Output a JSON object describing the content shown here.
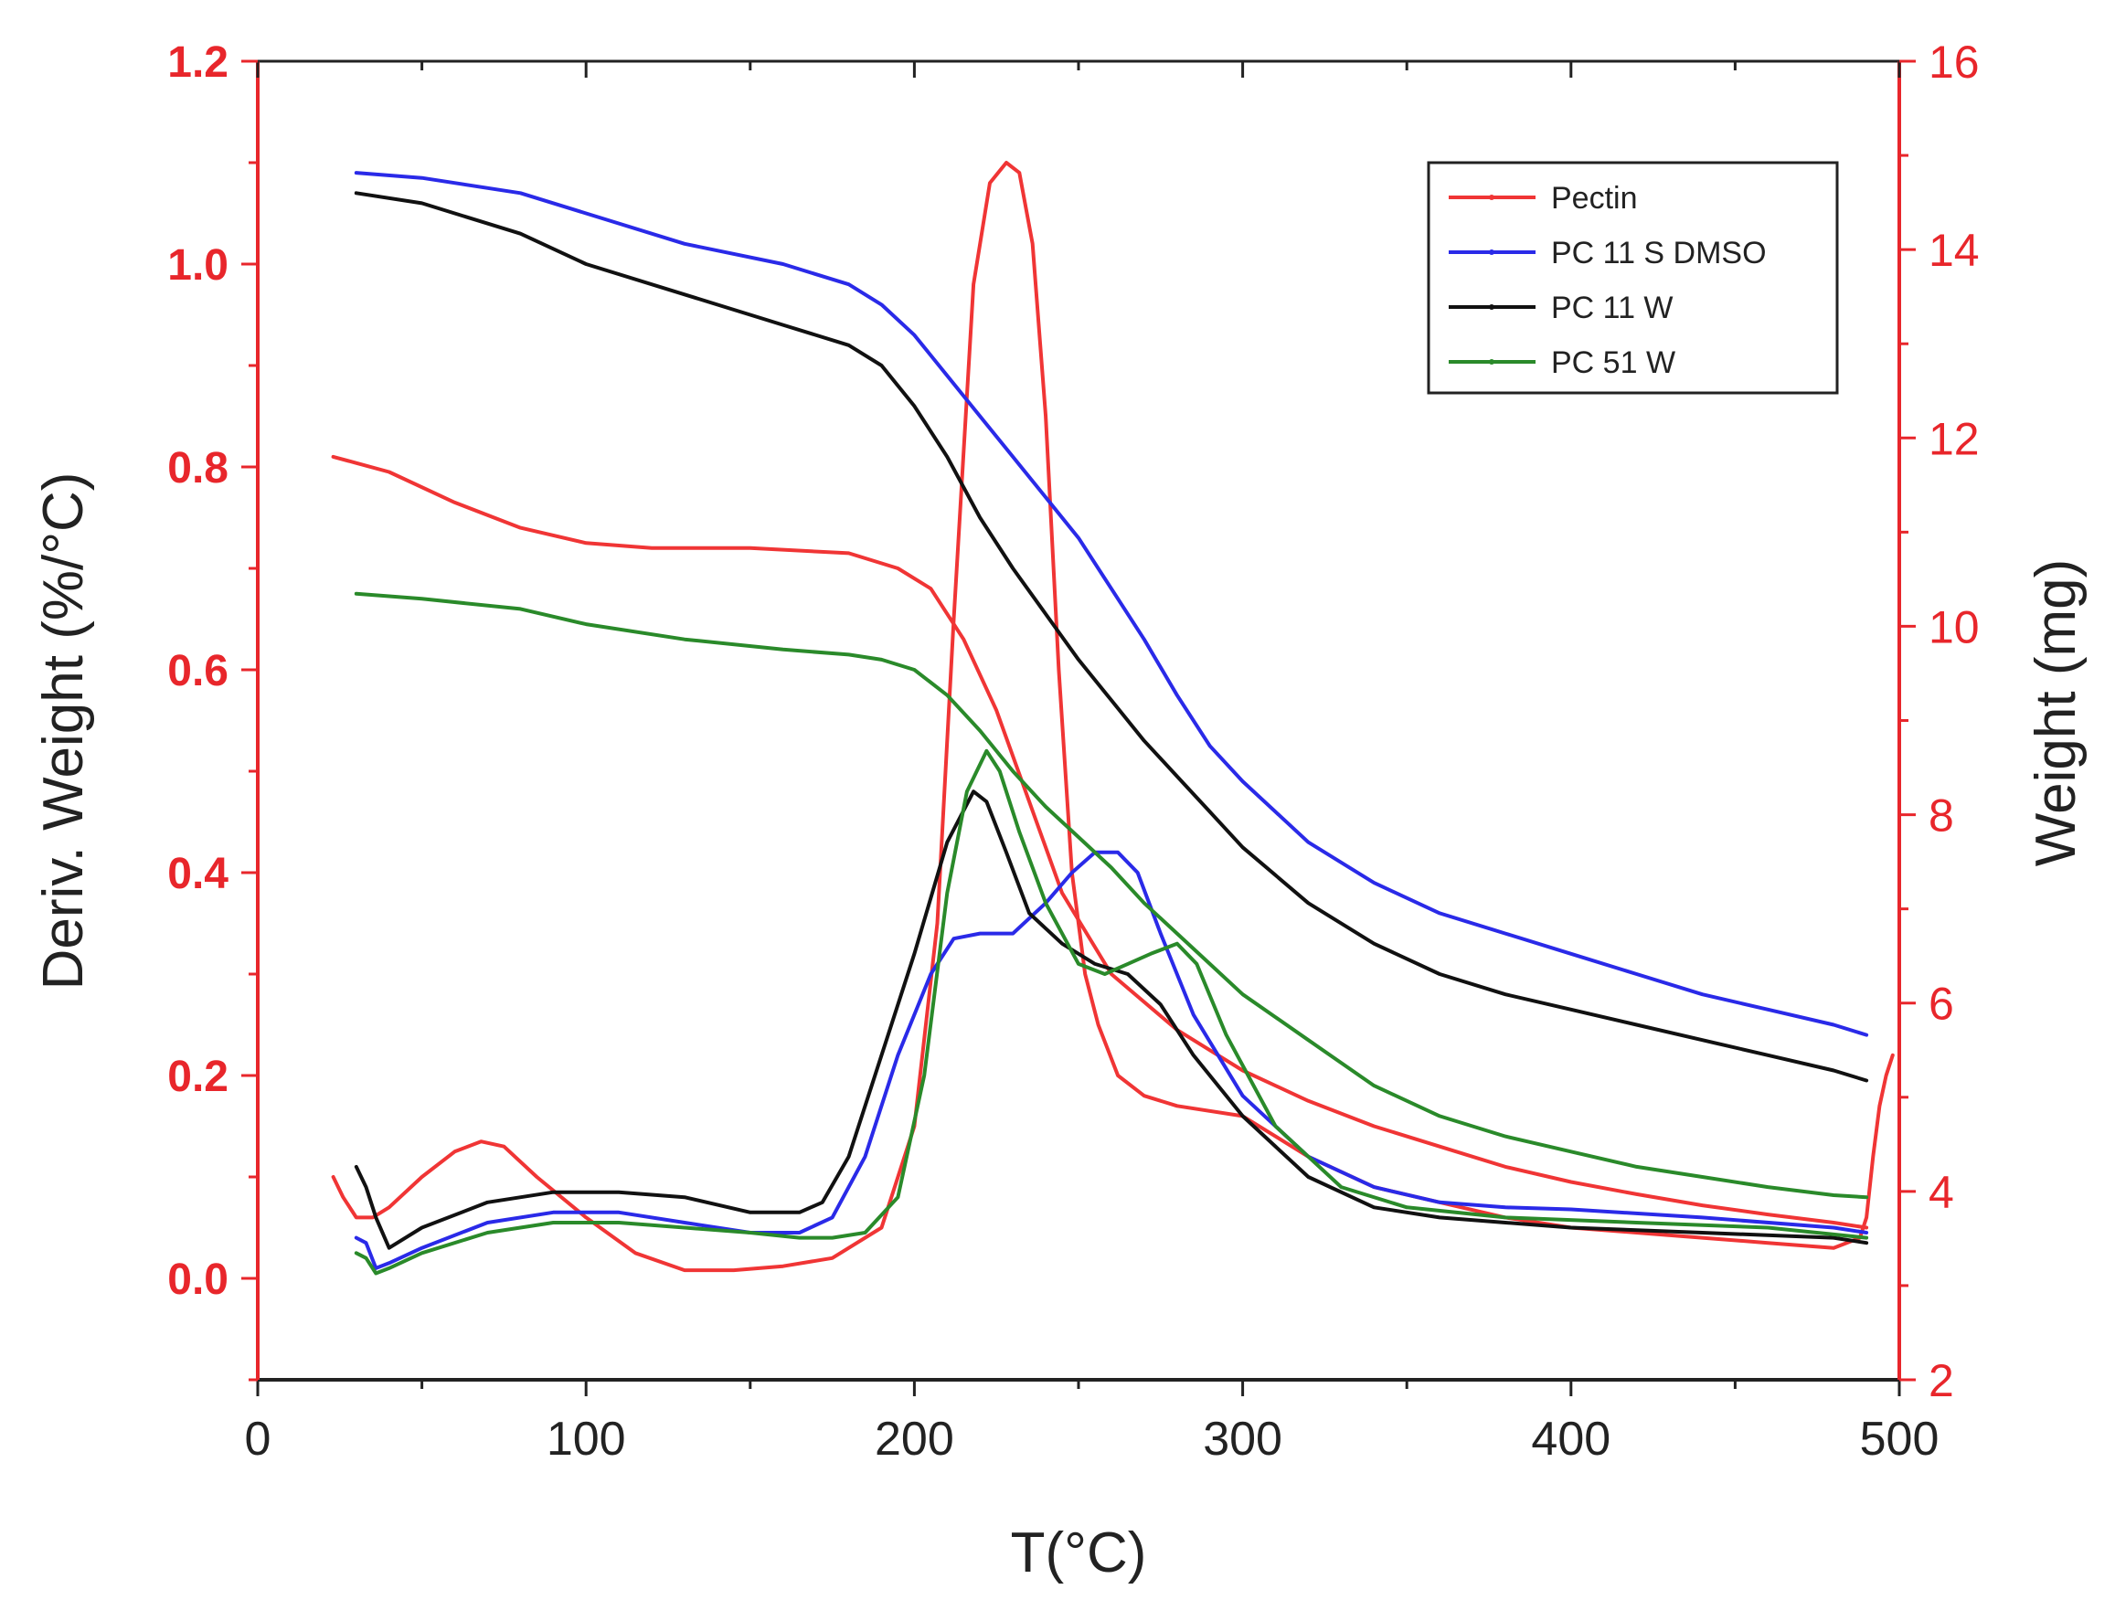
{
  "chart_data": {
    "type": "line",
    "title": "",
    "xlabel": "T(°C)",
    "ylabel_left": "Deriv. Weight (%/°C)",
    "ylabel_right": "Weight (mg)",
    "xlim": [
      0,
      500
    ],
    "ylim_left": [
      -0.1,
      1.2
    ],
    "ylim_right": [
      2,
      16
    ],
    "x_ticks": [
      "0",
      "100",
      "200",
      "300",
      "400",
      "500"
    ],
    "y_left_ticks": [
      "0.0",
      "0.2",
      "0.4",
      "0.6",
      "0.8",
      "1.0",
      "1.2"
    ],
    "y_right_ticks": [
      "2",
      "4",
      "6",
      "8",
      "10",
      "12",
      "14",
      "16"
    ],
    "legend_position": "top-right",
    "legend": [
      {
        "name": "Pectin",
        "color": "#f03535"
      },
      {
        "name": "PC 11 S   DMSO",
        "color": "#2a2ae8"
      },
      {
        "name": "PC 11 W",
        "color": "#111111"
      },
      {
        "name": "PC 51 W",
        "color": "#2a8a2a"
      }
    ],
    "series": [
      {
        "name": "Pectin",
        "kind": "weight",
        "axis": "left",
        "color": "#f03535",
        "x": [
          23,
          40,
          60,
          80,
          100,
          120,
          150,
          180,
          195,
          205,
          215,
          225,
          235,
          245,
          260,
          280,
          300,
          320,
          340,
          360,
          380,
          400,
          420,
          440,
          460,
          480,
          490
        ],
        "y": [
          0.81,
          0.795,
          0.765,
          0.74,
          0.725,
          0.72,
          0.72,
          0.715,
          0.7,
          0.68,
          0.63,
          0.56,
          0.47,
          0.38,
          0.3,
          0.245,
          0.205,
          0.175,
          0.15,
          0.13,
          0.11,
          0.095,
          0.083,
          0.072,
          0.063,
          0.055,
          0.05
        ]
      },
      {
        "name": "Pectin",
        "kind": "derivative",
        "axis": "left",
        "color": "#f03535",
        "x": [
          23,
          26,
          30,
          35,
          40,
          50,
          60,
          68,
          75,
          85,
          100,
          115,
          130,
          145,
          160,
          175,
          190,
          200,
          207,
          212,
          218,
          223,
          228,
          232,
          236,
          240,
          244,
          248,
          252,
          256,
          262,
          270,
          280,
          300,
          320,
          340,
          360,
          380,
          400,
          420,
          440,
          460,
          480,
          488,
          490,
          492,
          494,
          496,
          498
        ],
        "y": [
          0.1,
          0.08,
          0.06,
          0.06,
          0.07,
          0.1,
          0.125,
          0.135,
          0.13,
          0.1,
          0.06,
          0.025,
          0.008,
          0.008,
          0.012,
          0.02,
          0.05,
          0.15,
          0.35,
          0.65,
          0.98,
          1.08,
          1.1,
          1.09,
          1.02,
          0.85,
          0.6,
          0.4,
          0.3,
          0.25,
          0.2,
          0.18,
          0.17,
          0.16,
          0.12,
          0.09,
          0.075,
          0.06,
          0.05,
          0.045,
          0.04,
          0.035,
          0.03,
          0.04,
          0.06,
          0.12,
          0.17,
          0.2,
          0.22
        ]
      },
      {
        "name": "PC 11 S   DMSO",
        "kind": "weight",
        "axis": "left",
        "color": "#2a2ae8",
        "x": [
          30,
          50,
          80,
          100,
          130,
          160,
          180,
          190,
          200,
          210,
          220,
          230,
          240,
          250,
          260,
          270,
          280,
          290,
          300,
          320,
          340,
          360,
          380,
          400,
          420,
          440,
          460,
          480,
          490
        ],
        "y": [
          1.09,
          1.085,
          1.07,
          1.05,
          1.02,
          1.0,
          0.98,
          0.96,
          0.93,
          0.89,
          0.85,
          0.81,
          0.77,
          0.73,
          0.68,
          0.63,
          0.575,
          0.525,
          0.49,
          0.43,
          0.39,
          0.36,
          0.34,
          0.32,
          0.3,
          0.28,
          0.265,
          0.25,
          0.24
        ]
      },
      {
        "name": "PC 11 S   DMSO",
        "kind": "derivative",
        "axis": "left",
        "color": "#2a2ae8",
        "x": [
          30,
          33,
          36,
          40,
          50,
          70,
          90,
          110,
          130,
          150,
          165,
          175,
          185,
          195,
          205,
          212,
          220,
          230,
          240,
          248,
          255,
          262,
          268,
          275,
          285,
          300,
          320,
          340,
          360,
          380,
          400,
          440,
          480,
          490
        ],
        "y": [
          0.04,
          0.035,
          0.01,
          0.015,
          0.03,
          0.055,
          0.065,
          0.065,
          0.055,
          0.045,
          0.045,
          0.06,
          0.12,
          0.22,
          0.3,
          0.335,
          0.34,
          0.34,
          0.37,
          0.4,
          0.42,
          0.42,
          0.4,
          0.34,
          0.26,
          0.18,
          0.12,
          0.09,
          0.075,
          0.07,
          0.068,
          0.06,
          0.05,
          0.045
        ]
      },
      {
        "name": "PC 11 W",
        "kind": "weight",
        "axis": "left",
        "color": "#111111",
        "x": [
          30,
          50,
          80,
          100,
          130,
          160,
          180,
          190,
          200,
          210,
          220,
          230,
          240,
          250,
          260,
          270,
          280,
          290,
          300,
          320,
          340,
          360,
          380,
          400,
          420,
          440,
          460,
          480,
          490
        ],
        "y": [
          1.07,
          1.06,
          1.03,
          1.0,
          0.97,
          0.94,
          0.92,
          0.9,
          0.86,
          0.81,
          0.75,
          0.7,
          0.655,
          0.61,
          0.57,
          0.53,
          0.495,
          0.46,
          0.425,
          0.37,
          0.33,
          0.3,
          0.28,
          0.265,
          0.25,
          0.235,
          0.22,
          0.205,
          0.195
        ]
      },
      {
        "name": "PC 11 W",
        "kind": "derivative",
        "axis": "left",
        "color": "#111111",
        "x": [
          30,
          33,
          36,
          40,
          50,
          70,
          90,
          110,
          130,
          150,
          165,
          172,
          180,
          190,
          200,
          210,
          218,
          222,
          228,
          235,
          245,
          255,
          265,
          275,
          285,
          300,
          320,
          340,
          360,
          380,
          400,
          440,
          480,
          490
        ],
        "y": [
          0.11,
          0.09,
          0.06,
          0.03,
          0.05,
          0.075,
          0.085,
          0.085,
          0.08,
          0.065,
          0.065,
          0.075,
          0.12,
          0.22,
          0.32,
          0.43,
          0.48,
          0.47,
          0.42,
          0.36,
          0.33,
          0.31,
          0.3,
          0.27,
          0.22,
          0.16,
          0.1,
          0.07,
          0.06,
          0.055,
          0.05,
          0.045,
          0.04,
          0.035
        ]
      },
      {
        "name": "PC 51 W",
        "kind": "weight",
        "axis": "left",
        "color": "#2a8a2a",
        "x": [
          30,
          50,
          80,
          100,
          130,
          160,
          180,
          190,
          200,
          210,
          220,
          230,
          240,
          250,
          260,
          270,
          280,
          290,
          300,
          320,
          340,
          360,
          380,
          400,
          420,
          440,
          460,
          480,
          490
        ],
        "y": [
          0.675,
          0.67,
          0.66,
          0.645,
          0.63,
          0.62,
          0.615,
          0.61,
          0.6,
          0.575,
          0.54,
          0.5,
          0.465,
          0.435,
          0.405,
          0.37,
          0.34,
          0.31,
          0.28,
          0.235,
          0.19,
          0.16,
          0.14,
          0.125,
          0.11,
          0.1,
          0.09,
          0.082,
          0.08
        ]
      },
      {
        "name": "PC 51 W",
        "kind": "derivative",
        "axis": "left",
        "color": "#2a8a2a",
        "x": [
          30,
          33,
          36,
          40,
          50,
          70,
          90,
          110,
          130,
          150,
          165,
          175,
          185,
          195,
          203,
          210,
          216,
          222,
          226,
          232,
          240,
          250,
          258,
          265,
          272,
          280,
          286,
          295,
          310,
          330,
          350,
          380,
          420,
          460,
          490
        ],
        "y": [
          0.025,
          0.02,
          0.005,
          0.01,
          0.025,
          0.045,
          0.055,
          0.055,
          0.05,
          0.045,
          0.04,
          0.04,
          0.045,
          0.08,
          0.2,
          0.38,
          0.48,
          0.52,
          0.5,
          0.44,
          0.37,
          0.31,
          0.3,
          0.31,
          0.32,
          0.33,
          0.31,
          0.24,
          0.15,
          0.09,
          0.07,
          0.06,
          0.055,
          0.05,
          0.04
        ]
      }
    ]
  }
}
